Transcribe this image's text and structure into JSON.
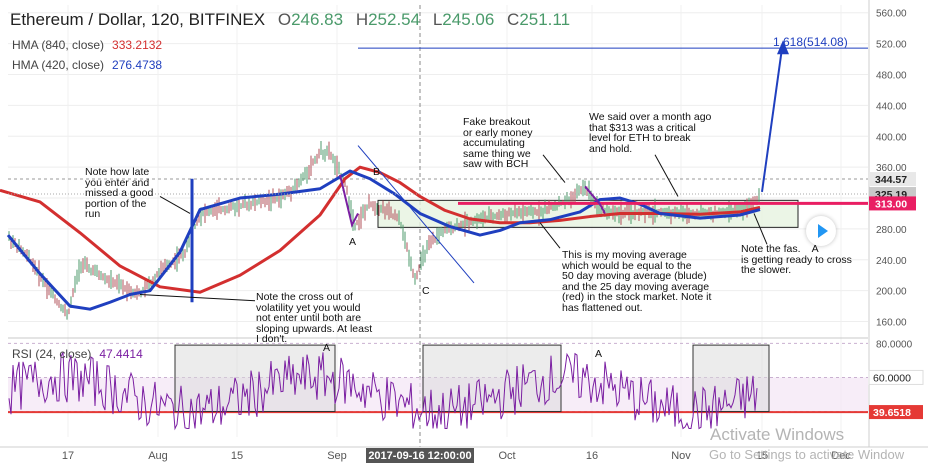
{
  "header": {
    "symbol": "Ethereum / Dollar, 120, BITFINEX",
    "open_label": "O",
    "open": "246.83",
    "high_label": "H",
    "high": "252.54",
    "low_label": "L",
    "low": "245.06",
    "close_label": "C",
    "close": "251.11"
  },
  "indicators": [
    {
      "name": "HMA (840, close)",
      "value": "333.2132",
      "color": "#d32f2f"
    },
    {
      "name": "HMA (420, close)",
      "value": "276.4738",
      "color": "#1f3fbf"
    }
  ],
  "rsi": {
    "name": "RSI (24, close)",
    "value": "47.4414",
    "level_label": "39.6518",
    "color": "#7b1fa2"
  },
  "annotations": {
    "cross_note": "Note how late\nyou enter and\nmissed a good\nportion of the\nrun",
    "cross_out": "Note the cross out of\nvolatility yet you would\nnot enter until both are\nsloping upwards. At least\nI don't.",
    "fake_breakout": "Fake breakout\nor early money\naccumulating\nsame thing we\nsaw with BCH",
    "critical_level": "We said over a month ago\nthat $313 was a critical\nlevel for ETH to break\nand hold.",
    "moving_avg": "This is my moving average\nwhich would be equal to the\n50 day moving average (blude)\nand the 25 day moving average\n(red) in the stock market. Note it\nhas flattened out.",
    "fast_slow": "Note the fas.    A\nis getting ready to cross\nthe slower.",
    "wave_A": "A",
    "wave_B": "B",
    "wave_C": "C",
    "rsi_A1": "A",
    "rsi_A2": "A",
    "fib_target": "1.618(514.08)"
  },
  "price_labels": {
    "p1": "344.57",
    "p2": "325.19",
    "p3": "313.00",
    "rsi_level": "39.6518",
    "rsi_60": "60.0000"
  },
  "crosshair_date": "2017-09-16 12:00:00",
  "watermark": {
    "line1": "Activate Windows",
    "line2": "Go to Settings to activate Window"
  },
  "chart_data": {
    "type": "line",
    "title": "Ethereum / Dollar, 120, BITFINEX",
    "x_ticks": [
      "17",
      "Aug",
      "15",
      "Sep",
      "Oct",
      "16",
      "Nov",
      "15",
      "Dec"
    ],
    "price_axis": {
      "ticks": [
        160,
        200,
        240,
        280,
        320,
        360,
        400,
        440,
        480,
        520,
        560
      ],
      "ylim": [
        140,
        570
      ]
    },
    "rsi_axis": {
      "ticks": [
        40,
        60,
        80
      ],
      "ylim": [
        25,
        82
      ]
    },
    "series": [
      {
        "name": "HMA (840, close)",
        "color": "#d32f2f",
        "values": [
          [
            0,
            330
          ],
          [
            40,
            315
          ],
          [
            80,
            275
          ],
          [
            120,
            232
          ],
          [
            160,
            205
          ],
          [
            200,
            198
          ],
          [
            240,
            220
          ],
          [
            280,
            252
          ],
          [
            320,
            298
          ],
          [
            345,
            345
          ],
          [
            360,
            360
          ],
          [
            380,
            353
          ],
          [
            400,
            340
          ],
          [
            420,
            322
          ],
          [
            445,
            304
          ],
          [
            470,
            293
          ],
          [
            500,
            288
          ],
          [
            530,
            288
          ],
          [
            560,
            291
          ],
          [
            590,
            296
          ],
          [
            620,
            300
          ],
          [
            660,
            300
          ],
          [
            700,
            299
          ],
          [
            740,
            302
          ],
          [
            760,
            308
          ]
        ]
      },
      {
        "name": "HMA (420, close)",
        "color": "#1f3fbf",
        "values": [
          [
            8,
            272
          ],
          [
            40,
            222
          ],
          [
            70,
            180
          ],
          [
            90,
            176
          ],
          [
            110,
            185
          ],
          [
            130,
            195
          ],
          [
            150,
            200
          ],
          [
            180,
            250
          ],
          [
            200,
            305
          ],
          [
            240,
            320
          ],
          [
            280,
            325
          ],
          [
            320,
            332
          ],
          [
            350,
            355
          ],
          [
            370,
            345
          ],
          [
            395,
            325
          ],
          [
            420,
            300
          ],
          [
            450,
            283
          ],
          [
            480,
            272
          ],
          [
            500,
            278
          ],
          [
            520,
            288
          ],
          [
            550,
            292
          ],
          [
            580,
            302
          ],
          [
            600,
            318
          ],
          [
            620,
            320
          ],
          [
            640,
            312
          ],
          [
            660,
            300
          ],
          [
            700,
            294
          ],
          [
            740,
            298
          ],
          [
            760,
            305
          ]
        ]
      },
      {
        "name": "Projection",
        "color": "#1f3fbf",
        "values": [
          [
            762,
            328
          ],
          [
            782,
            514
          ]
        ]
      }
    ],
    "levels": [
      {
        "label": "313.00",
        "value": 313.0,
        "color": "#e91e63"
      },
      {
        "label": "1.618(514.08)",
        "value": 514.08,
        "color": "#1f3fbf"
      },
      {
        "label": "344.57",
        "value": 344.57
      },
      {
        "label": "325.19",
        "value": 325.19
      }
    ],
    "rsi": {
      "name": "RSI (24, close)",
      "last": 47.4414,
      "level": 39.6518
    }
  }
}
